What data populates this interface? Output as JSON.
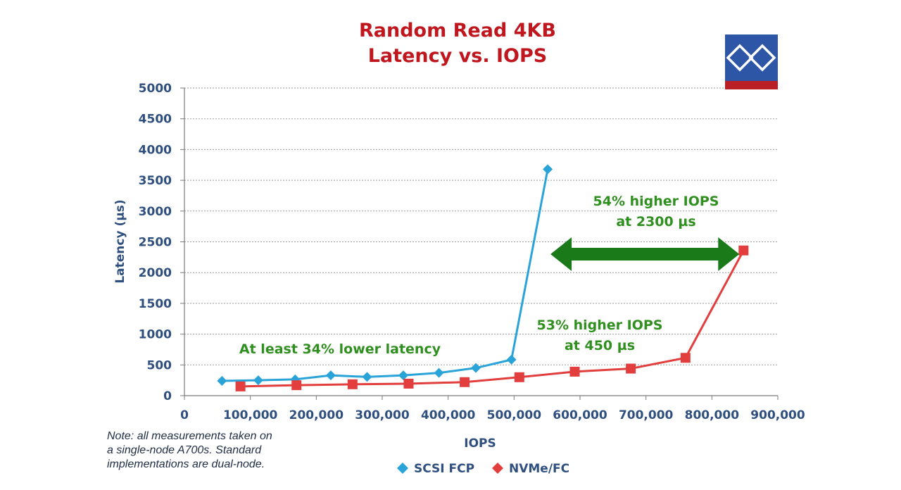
{
  "colors": {
    "title": "#c0171f",
    "axis_text": "#2f4f7f",
    "annotation": "#2f8f1f",
    "arrow": "#1a7a1a",
    "scsi": "#2aa3d8",
    "nvme": "#e23e3e",
    "grid": "#9a9a9a",
    "logo_blue": "#2e56a6",
    "logo_red": "#b82025"
  },
  "chart_data": {
    "type": "line",
    "title": "Random Read 4KB",
    "subtitle": "Latency vs. IOPS",
    "xlabel": "IOPS",
    "ylabel": "Latency (µs)",
    "xlim": [
      0,
      900000
    ],
    "ylim": [
      0,
      5000
    ],
    "x_ticks": [
      0,
      100000,
      200000,
      300000,
      400000,
      500000,
      600000,
      700000,
      800000,
      900000
    ],
    "x_tick_labels": [
      "0",
      "100,000",
      "200,000",
      "300,000",
      "400,000",
      "500,000",
      "600,000",
      "700,000",
      "800,000",
      "900,000"
    ],
    "y_ticks": [
      0,
      500,
      1000,
      1500,
      2000,
      2500,
      3000,
      3500,
      4000,
      4500,
      5000
    ],
    "y_tick_labels": [
      "0",
      "500",
      "1000",
      "1500",
      "2000",
      "2500",
      "3000",
      "3500",
      "4000",
      "4500",
      "5000"
    ],
    "grid": "horizontal dashed",
    "legend_position": "bottom",
    "series": [
      {
        "name": "SCSI FCP",
        "marker": "diamond",
        "color_key": "scsi",
        "points": [
          [
            57000,
            240
          ],
          [
            112000,
            250
          ],
          [
            168000,
            265
          ],
          [
            222000,
            330
          ],
          [
            277000,
            305
          ],
          [
            332000,
            330
          ],
          [
            386000,
            370
          ],
          [
            442000,
            450
          ],
          [
            496000,
            585
          ],
          [
            551000,
            3680
          ]
        ]
      },
      {
        "name": "NVMe/FC",
        "marker": "square",
        "color_key": "nvme",
        "points": [
          [
            85000,
            150
          ],
          [
            170000,
            170
          ],
          [
            255000,
            185
          ],
          [
            340000,
            195
          ],
          [
            425000,
            220
          ],
          [
            508000,
            300
          ],
          [
            592000,
            390
          ],
          [
            677000,
            440
          ],
          [
            760000,
            615
          ],
          [
            848000,
            2360
          ]
        ]
      }
    ],
    "annotations": [
      {
        "lines": [
          "54% higher IOPS",
          "at 2300 µs"
        ]
      },
      {
        "lines": [
          "53% higher IOPS",
          "at 450 µs"
        ]
      },
      {
        "lines": [
          "At least 34% lower latency"
        ]
      }
    ],
    "arrow": {
      "from_x": 551000,
      "to_x": 848000,
      "y": 2300
    }
  },
  "note": [
    "Note: all measurements taken on",
    "a single-node A700s. Standard",
    "implementations are dual-node."
  ]
}
